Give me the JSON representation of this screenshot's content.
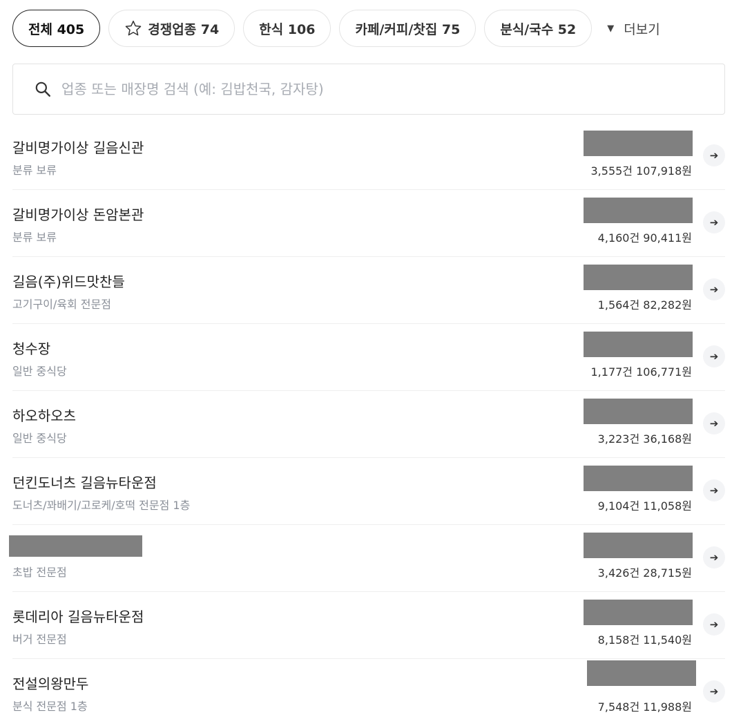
{
  "chips": [
    {
      "label": "전체 405",
      "active": true
    },
    {
      "label": "경쟁업종 74",
      "icon": "star-icon"
    },
    {
      "label": "한식 106"
    },
    {
      "label": "카페/커피/찻집 75"
    },
    {
      "label": "분식/국수 52"
    }
  ],
  "more_label": "더보기",
  "search": {
    "placeholder": "업종 또는 매장명 검색 (예: 김밥천국, 감자탕)"
  },
  "redaction_color": "#808080",
  "stores": [
    {
      "name": "갈비명가이상 길음신관",
      "category": "분류 보류",
      "stats": "3,555건 107,918원"
    },
    {
      "name": "갈비명가이상 돈암본관",
      "category": "분류 보류",
      "stats": "4,160건 90,411원"
    },
    {
      "name": "길음(주)위드맛찬들",
      "category": "고기구이/육회 전문점",
      "stats": "1,564건 82,282원"
    },
    {
      "name": "청수장",
      "category": "일반 중식당",
      "stats": "1,177건 106,771원"
    },
    {
      "name": "하오하오츠",
      "category": "일반 중식당",
      "stats": "3,223건 36,168원"
    },
    {
      "name": "던킨도너츠 길음뉴타운점",
      "category": "도너츠/꽈배기/고로케/호떡 전문점 1층",
      "stats": "9,104건 11,058원"
    },
    {
      "name": null,
      "category": "초밥 전문점",
      "stats": "3,426건 28,715원"
    },
    {
      "name": "롯데리아 길음뉴타운점",
      "category": "버거 전문점",
      "stats": "8,158건 11,540원"
    },
    {
      "name": "전설의왕만두",
      "category": "분식 전문점 1층",
      "stats": "7,548건 11,988원"
    }
  ]
}
